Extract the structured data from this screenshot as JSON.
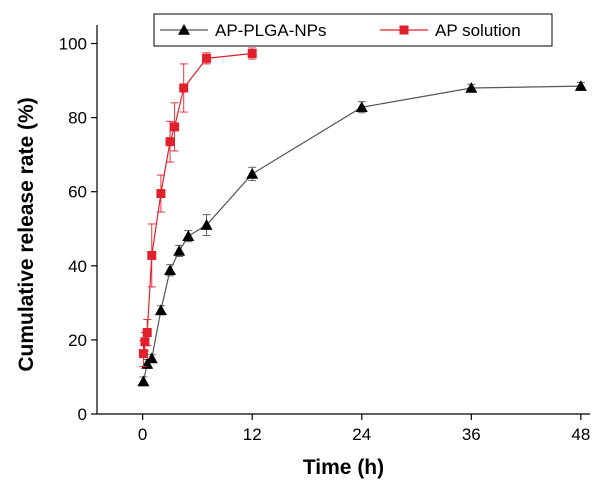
{
  "chart_data": {
    "type": "line",
    "xlabel": "Time (h)",
    "ylabel": "Cumulative release rate (%)",
    "xlim": [
      -5,
      49
    ],
    "ylim": [
      0,
      105
    ],
    "xticks": [
      0,
      12,
      24,
      36,
      48
    ],
    "yticks": [
      0,
      20,
      40,
      60,
      80,
      100
    ],
    "legend_position": "top",
    "series": [
      {
        "name": "AP-PLGA-NPs",
        "color": "#555555",
        "marker": "triangle",
        "marker_color": "#000000",
        "x": [
          0.083,
          0.5,
          1,
          2,
          3,
          4,
          5,
          7,
          12,
          24,
          36,
          48
        ],
        "y": [
          8.8,
          13.5,
          15,
          28,
          38.8,
          44,
          48,
          51,
          64.8,
          82.8,
          88,
          88.5
        ],
        "error": [
          1.2,
          1.2,
          1.0,
          1.2,
          1.5,
          1.5,
          1.5,
          2.8,
          1.8,
          1.5,
          1.0,
          1.0
        ]
      },
      {
        "name": "AP solution",
        "color": "#e0202a",
        "marker": "square",
        "marker_color": "#e0202a",
        "x": [
          0.083,
          0.25,
          0.5,
          1,
          2,
          3,
          3.5,
          4.5,
          7,
          12
        ],
        "y": [
          16.3,
          19.5,
          22,
          42.8,
          59.5,
          73.5,
          77.5,
          88,
          96,
          97.3
        ],
        "error": [
          3.5,
          2.5,
          3.5,
          8.5,
          5.0,
          5.5,
          6.5,
          6.5,
          1.5,
          1.5
        ]
      }
    ]
  }
}
